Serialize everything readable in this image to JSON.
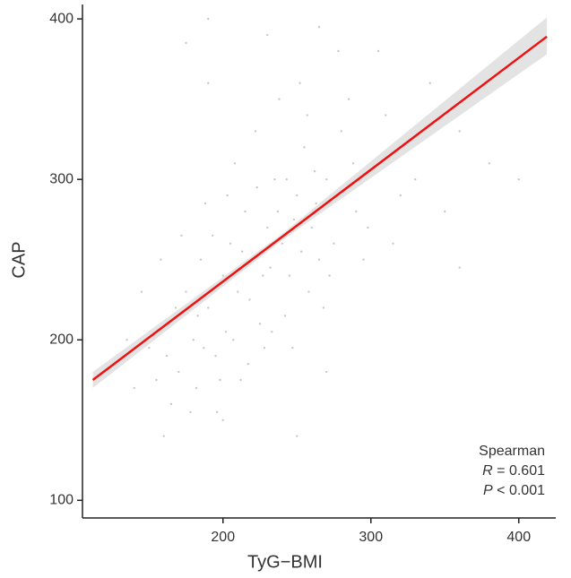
{
  "chart_data": {
    "type": "scatter",
    "xlabel": "TyG−BMI",
    "ylabel": "CAP",
    "xlim": [
      105,
      425
    ],
    "ylim": [
      89,
      409
    ],
    "xticks": [
      200,
      300,
      400
    ],
    "yticks": [
      100,
      200,
      300,
      400
    ],
    "point_color": "#c8c8c8",
    "line_color": "#ee1111",
    "band_color": "#e3e3e3",
    "x": [
      150,
      160,
      170,
      175,
      180,
      185,
      190,
      195,
      200,
      205,
      210,
      215,
      220,
      225,
      230,
      235,
      240,
      245,
      250,
      255,
      260,
      265,
      270,
      280,
      290,
      300,
      310,
      320,
      340,
      360,
      165,
      172,
      182,
      188,
      196,
      202,
      208,
      212,
      218,
      222,
      228,
      232,
      238,
      242,
      248,
      252,
      258,
      262,
      268,
      275,
      285,
      295,
      305,
      315,
      330,
      350,
      380,
      400,
      140,
      145,
      155,
      158,
      162,
      168,
      178,
      183,
      187,
      193,
      198,
      203,
      207,
      213,
      217,
      223,
      227,
      233,
      237,
      243,
      247,
      253,
      257,
      263,
      272,
      278,
      288,
      298,
      135,
      125,
      175,
      190,
      230,
      250,
      200,
      270,
      380,
      360,
      190,
      160,
      345,
      265
    ],
    "y": [
      195,
      210,
      180,
      230,
      200,
      250,
      220,
      190,
      240,
      260,
      230,
      280,
      250,
      210,
      270,
      300,
      260,
      240,
      290,
      320,
      270,
      250,
      300,
      330,
      280,
      310,
      340,
      290,
      360,
      330,
      160,
      265,
      170,
      285,
      155,
      205,
      310,
      175,
      225,
      330,
      195,
      245,
      350,
      215,
      275,
      360,
      230,
      305,
      220,
      260,
      350,
      250,
      380,
      260,
      300,
      280,
      310,
      300,
      170,
      230,
      175,
      250,
      190,
      220,
      155,
      215,
      195,
      265,
      175,
      290,
      200,
      255,
      185,
      295,
      240,
      205,
      280,
      300,
      195,
      255,
      340,
      285,
      240,
      380,
      310,
      270,
      200,
      185,
      385,
      400,
      390,
      140,
      150,
      180,
      370,
      245,
      360,
      140,
      340,
      395
    ],
    "fit": {
      "x": [
        112,
        419
      ],
      "y": [
        175,
        389
      ]
    },
    "ci": {
      "x": [
        112,
        240,
        419
      ],
      "lower": [
        170,
        262,
        378
      ],
      "upper": [
        180,
        266,
        401
      ]
    },
    "annotation": {
      "title": "Spearman",
      "lines": [
        {
          "symbol": "R",
          "text": "= 0.601"
        },
        {
          "symbol": "P",
          "text": "< 0.001"
        }
      ]
    }
  }
}
